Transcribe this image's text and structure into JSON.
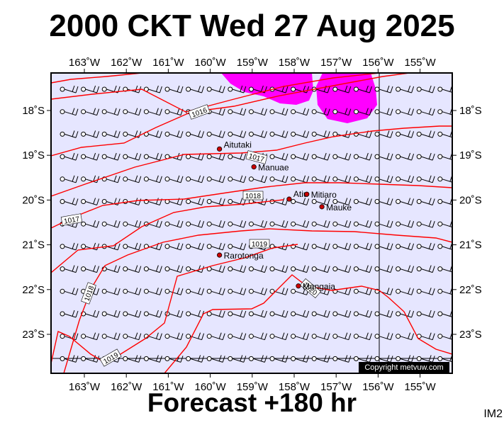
{
  "title": "2000 CKT Wed 27 Aug 2025",
  "subtitle": "Forecast +180 hr",
  "product_code": "IM2",
  "copyright": "Copyright metvuw.com",
  "colors": {
    "ocean": "#e6e6ff",
    "isobar": "#ff0000",
    "rain": "#ff00ff",
    "frame": "#000000",
    "town": "#cc0000",
    "copyright_bg": "#000000"
  },
  "longitudes": [
    {
      "lon": -163,
      "label": "163˚W"
    },
    {
      "lon": -162,
      "label": "162˚W"
    },
    {
      "lon": -161,
      "label": "161˚W"
    },
    {
      "lon": -160,
      "label": "160˚W"
    },
    {
      "lon": -159,
      "label": "159˚W"
    },
    {
      "lon": -158,
      "label": "158˚W"
    },
    {
      "lon": -157,
      "label": "157˚W"
    },
    {
      "lon": -156,
      "label": "156˚W"
    },
    {
      "lon": -155,
      "label": "155˚W"
    }
  ],
  "latitudes": [
    {
      "lat": -18,
      "label": "18˚S"
    },
    {
      "lat": -19,
      "label": "19˚S"
    },
    {
      "lat": -20,
      "label": "20˚S"
    },
    {
      "lat": -21,
      "label": "21˚S"
    },
    {
      "lat": -22,
      "label": "22˚S"
    },
    {
      "lat": -23,
      "label": "23˚S"
    }
  ],
  "places": [
    {
      "name": "Aitutaki",
      "lon": -159.78,
      "lat": -18.86
    },
    {
      "name": "Manuae",
      "lon": -158.96,
      "lat": -19.26
    },
    {
      "name": "Atiu",
      "lon": -158.12,
      "lat": -19.98
    },
    {
      "name": "Mitiaro",
      "lon": -157.7,
      "lat": -19.87
    },
    {
      "name": "Mauke",
      "lon": -157.34,
      "lat": -20.15
    },
    {
      "name": "Rarotonga",
      "lon": -159.78,
      "lat": -21.23
    },
    {
      "name": "Mangaia",
      "lon": -157.9,
      "lat": -21.92
    }
  ],
  "isobar_labels": [
    "1016",
    "1017",
    "1018",
    "1017",
    "1019",
    "1018",
    "1020",
    "1019"
  ]
}
